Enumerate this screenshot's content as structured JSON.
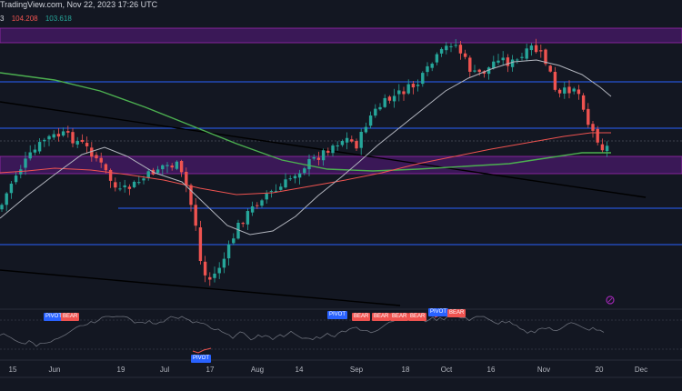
{
  "header": {
    "source": "TradingView.com, Nov 22, 2023 17:26 UTC",
    "symbol_suffix": "3",
    "values": [
      "104.208",
      "103.618"
    ]
  },
  "colors": {
    "background": "#131722",
    "up": "#26a69a",
    "down": "#ef5350",
    "ma_fast": "#b2b5be",
    "ma_mid": "#ef5350",
    "ma_slow": "#4caf50",
    "zone": "#7b2a8e",
    "level": "#2962ff"
  },
  "x_axis": {
    "labels": [
      "15",
      "Jun",
      "19",
      "Jul",
      "17",
      "Aug",
      "14",
      "Sep",
      "18",
      "Oct",
      "16",
      "Nov",
      "20",
      "Dec"
    ]
  },
  "indicator": {
    "badges": [
      {
        "type": "pivot",
        "label": "PIVOT"
      },
      {
        "type": "bear",
        "label": "BEAR"
      },
      {
        "type": "pivot",
        "label": "PIVOT"
      },
      {
        "type": "pivot",
        "label": "PIVOT"
      },
      {
        "type": "bear",
        "label": "BEAR"
      },
      {
        "type": "bear",
        "label": "BEAR"
      },
      {
        "type": "bear",
        "label": "BEAR"
      },
      {
        "type": "bear",
        "label": "BEAR"
      },
      {
        "type": "pivot",
        "label": "PIVOT"
      },
      {
        "type": "bear",
        "label": "BEAR"
      }
    ]
  }
}
